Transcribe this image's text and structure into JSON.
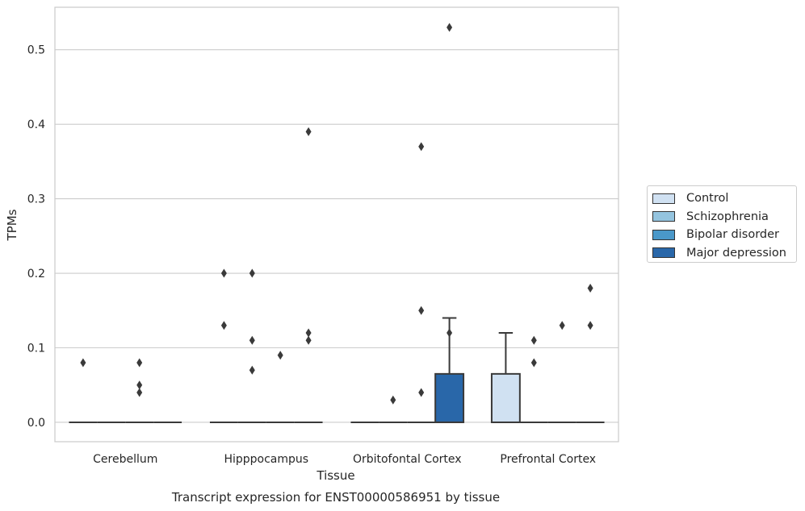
{
  "chart_data": {
    "type": "box",
    "title": "Transcript expression for ENST00000586951 by tissue",
    "xlabel": "Tissue",
    "ylabel": "TPMs",
    "ylim": [
      -0.026,
      0.557
    ],
    "yticks": [
      "0.0",
      "0.1",
      "0.2",
      "0.3",
      "0.4",
      "0.5"
    ],
    "ytick_values": [
      0,
      0.1,
      0.2,
      0.3,
      0.4,
      0.5
    ],
    "grid": true,
    "legend_position": "right",
    "categories": [
      "Cerebellum",
      "Hipppocampus",
      "Orbitofontal Cortex",
      "Prefrontal Cortex"
    ],
    "series": [
      {
        "name": "Control",
        "color": "#d0e1f2",
        "boxes": [
          {
            "q1": 0,
            "median": 0,
            "q3": 0,
            "whisker_low": 0,
            "whisker_high": 0,
            "outliers": [
              0.08
            ]
          },
          {
            "q1": 0,
            "median": 0,
            "q3": 0,
            "whisker_low": 0,
            "whisker_high": 0,
            "outliers": [
              0.2,
              0.13
            ]
          },
          {
            "q1": 0,
            "median": 0,
            "q3": 0,
            "whisker_low": 0,
            "whisker_high": 0,
            "outliers": []
          },
          {
            "q1": 0,
            "median": 0,
            "q3": 0.065,
            "whisker_low": 0,
            "whisker_high": 0.12,
            "outliers": []
          }
        ]
      },
      {
        "name": "Schizophrenia",
        "color": "#94c4df",
        "boxes": [
          {
            "q1": 0,
            "median": 0,
            "q3": 0,
            "whisker_low": 0,
            "whisker_high": 0,
            "outliers": []
          },
          {
            "q1": 0,
            "median": 0,
            "q3": 0,
            "whisker_low": 0,
            "whisker_high": 0,
            "outliers": [
              0.2,
              0.11,
              0.07
            ]
          },
          {
            "q1": 0,
            "median": 0,
            "q3": 0,
            "whisker_low": 0,
            "whisker_high": 0,
            "outliers": [
              0.03
            ]
          },
          {
            "q1": 0,
            "median": 0,
            "q3": 0,
            "whisker_low": 0,
            "whisker_high": 0,
            "outliers": [
              0.11,
              0.08
            ]
          }
        ]
      },
      {
        "name": "Bipolar disorder",
        "color": "#4a98c9",
        "boxes": [
          {
            "q1": 0,
            "median": 0,
            "q3": 0,
            "whisker_low": 0,
            "whisker_high": 0,
            "outliers": [
              0.08,
              0.05,
              0.04
            ]
          },
          {
            "q1": 0,
            "median": 0,
            "q3": 0,
            "whisker_low": 0,
            "whisker_high": 0,
            "outliers": [
              0.09
            ]
          },
          {
            "q1": 0,
            "median": 0,
            "q3": 0,
            "whisker_low": 0,
            "whisker_high": 0,
            "outliers": [
              0.37,
              0.15,
              0.04
            ]
          },
          {
            "q1": 0,
            "median": 0,
            "q3": 0,
            "whisker_low": 0,
            "whisker_high": 0,
            "outliers": [
              0.13
            ]
          }
        ]
      },
      {
        "name": "Major depression",
        "color": "#2967a9",
        "boxes": [
          {
            "q1": 0,
            "median": 0,
            "q3": 0,
            "whisker_low": 0,
            "whisker_high": 0,
            "outliers": []
          },
          {
            "q1": 0,
            "median": 0,
            "q3": 0,
            "whisker_low": 0,
            "whisker_high": 0,
            "outliers": [
              0.39,
              0.12,
              0.11
            ]
          },
          {
            "q1": 0,
            "median": 0,
            "q3": 0.065,
            "whisker_low": 0,
            "whisker_high": 0.14,
            "outliers": [
              0.53,
              0.12
            ]
          },
          {
            "q1": 0,
            "median": 0,
            "q3": 0,
            "whisker_low": 0,
            "whisker_high": 0,
            "outliers": [
              0.18,
              0.13
            ]
          }
        ]
      }
    ]
  }
}
